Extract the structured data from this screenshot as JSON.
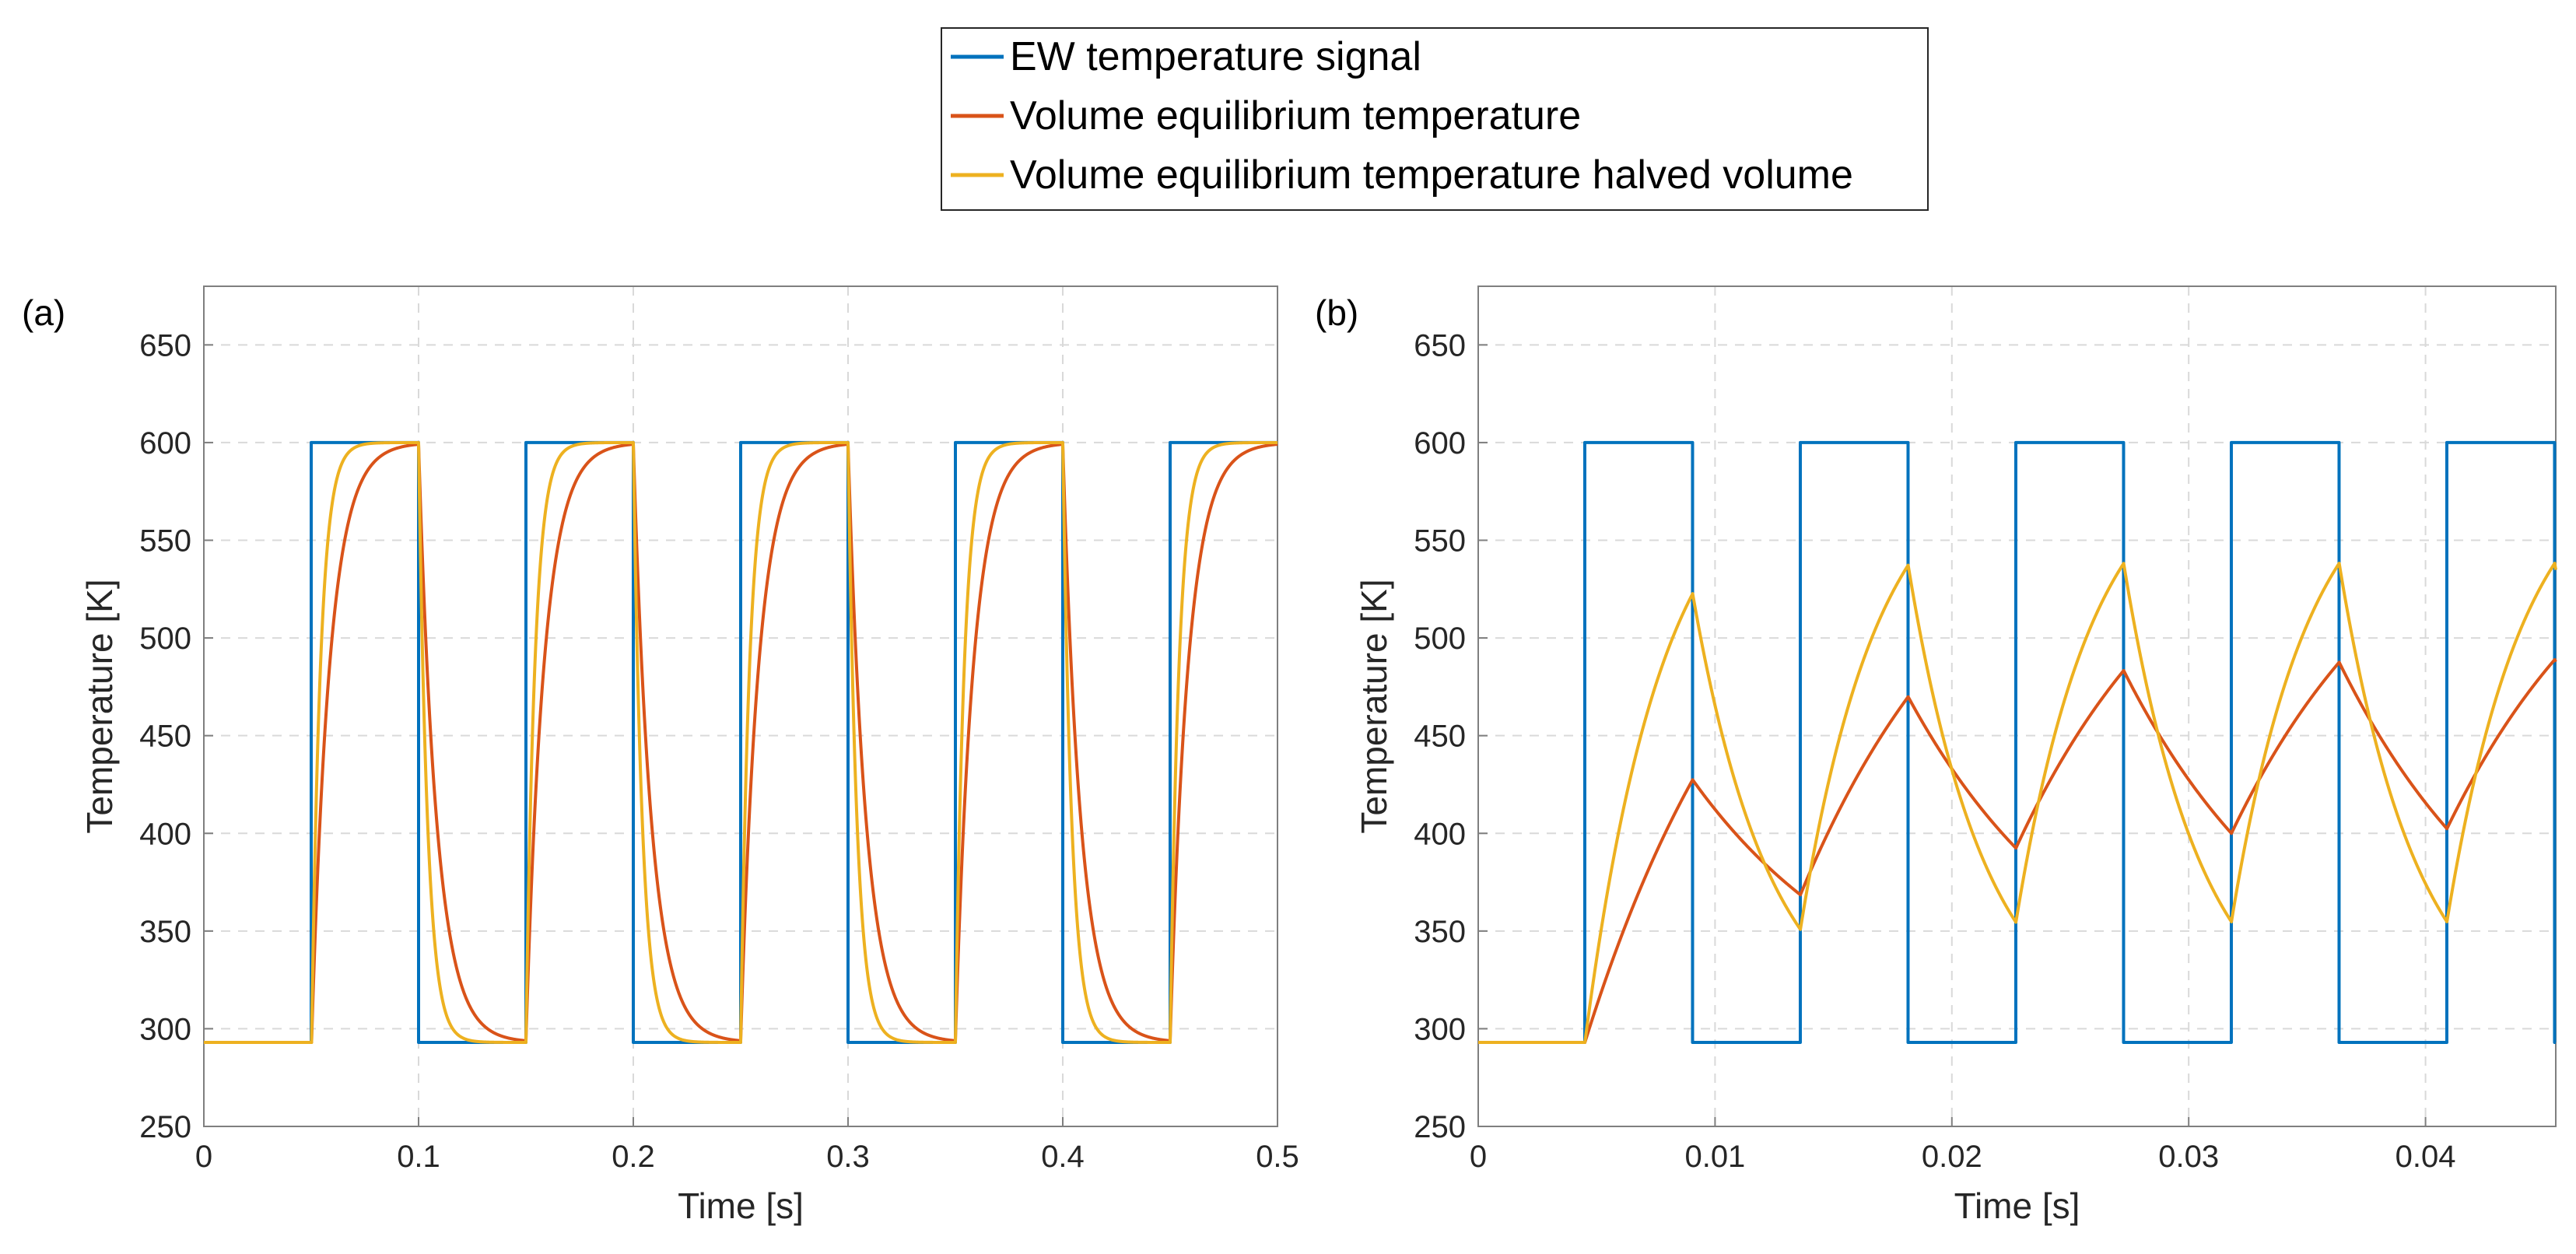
{
  "colors": {
    "ew": "#0072BD",
    "volume": "#D95319",
    "halved": "#EDB120",
    "grid": "#d9d9d9",
    "axis": "#7f7f7f"
  },
  "legend": {
    "entries": [
      "EW temperature signal",
      "Volume equilibrium temperature",
      "Volume equilibrium temperature halved volume"
    ]
  },
  "chart_data": [
    {
      "panel_label": "(a)",
      "type": "line",
      "xlabel": "Time [s]",
      "ylabel": "Temperature [K]",
      "xlim": [
        0,
        0.5
      ],
      "ylim": [
        250,
        680
      ],
      "xticks": [
        0,
        0.1,
        0.2,
        0.3,
        0.4,
        0.5
      ],
      "xtick_labels": [
        "0",
        "0.1",
        "0.2",
        "0.3",
        "0.4",
        "0.5"
      ],
      "yticks": [
        250,
        300,
        350,
        400,
        450,
        500,
        550,
        600,
        650
      ],
      "ytick_labels": [
        "250",
        "300",
        "350",
        "400",
        "450",
        "500",
        "550",
        "600",
        "650"
      ],
      "grid": true,
      "signal": {
        "low": 293,
        "high": 600,
        "start": 0.05,
        "half_period": 0.05,
        "end": 0.5
      },
      "series": [
        {
          "name": "EW temperature signal",
          "kind": "square",
          "color_key": "ew"
        },
        {
          "name": "Volume equilibrium temperature",
          "kind": "first-order",
          "tau": 0.0085,
          "color_key": "volume"
        },
        {
          "name": "Volume equilibrium temperature halved volume",
          "kind": "first-order",
          "tau": 0.0042,
          "color_key": "halved"
        }
      ]
    },
    {
      "panel_label": "(b)",
      "type": "line",
      "xlabel": "Time [s]",
      "ylabel": "Temperature [K]",
      "xlim": [
        0,
        0.0455
      ],
      "ylim": [
        250,
        680
      ],
      "xticks": [
        0,
        0.01,
        0.02,
        0.03,
        0.04
      ],
      "xtick_labels": [
        "0",
        "0.01",
        "0.02",
        "0.03",
        "0.04"
      ],
      "yticks": [
        250,
        300,
        350,
        400,
        450,
        500,
        550,
        600,
        650
      ],
      "ytick_labels": [
        "250",
        "300",
        "350",
        "400",
        "450",
        "500",
        "550",
        "600",
        "650"
      ],
      "grid": true,
      "signal": {
        "low": 293,
        "high": 600,
        "start": 0.0045,
        "half_period": 0.00455,
        "end": 0.0455
      },
      "series": [
        {
          "name": "EW temperature signal",
          "kind": "square",
          "color_key": "ew"
        },
        {
          "name": "Volume equilibrium temperature",
          "kind": "first-order",
          "tau": 0.0079,
          "color_key": "volume"
        },
        {
          "name": "Volume equilibrium temperature halved volume",
          "kind": "first-order",
          "tau": 0.0033,
          "color_key": "halved"
        }
      ]
    }
  ]
}
